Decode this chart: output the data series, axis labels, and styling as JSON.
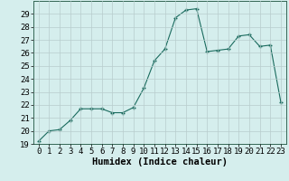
{
  "x": [
    0,
    1,
    2,
    3,
    4,
    5,
    6,
    7,
    8,
    9,
    10,
    11,
    12,
    13,
    14,
    15,
    16,
    17,
    18,
    19,
    20,
    21,
    22,
    23
  ],
  "y": [
    19.2,
    20.0,
    20.1,
    20.8,
    21.7,
    21.7,
    21.7,
    21.4,
    21.4,
    21.8,
    23.3,
    25.4,
    26.3,
    28.7,
    29.3,
    29.4,
    26.1,
    26.2,
    26.3,
    27.3,
    27.4,
    26.5,
    26.6,
    22.2
  ],
  "xlabel": "Humidex (Indice chaleur)",
  "xlim": [
    -0.5,
    23.5
  ],
  "ylim": [
    19,
    30
  ],
  "yticks": [
    19,
    20,
    21,
    22,
    23,
    24,
    25,
    26,
    27,
    28,
    29
  ],
  "xticks": [
    0,
    1,
    2,
    3,
    4,
    5,
    6,
    7,
    8,
    9,
    10,
    11,
    12,
    13,
    14,
    15,
    16,
    17,
    18,
    19,
    20,
    21,
    22,
    23
  ],
  "bg_color": "#d5eeed",
  "plot_bg_color": "#d5eeed",
  "line_color": "#1a6b5e",
  "grid_color": "#b8cccc",
  "label_fontsize": 7.5,
  "tick_fontsize": 6.5
}
